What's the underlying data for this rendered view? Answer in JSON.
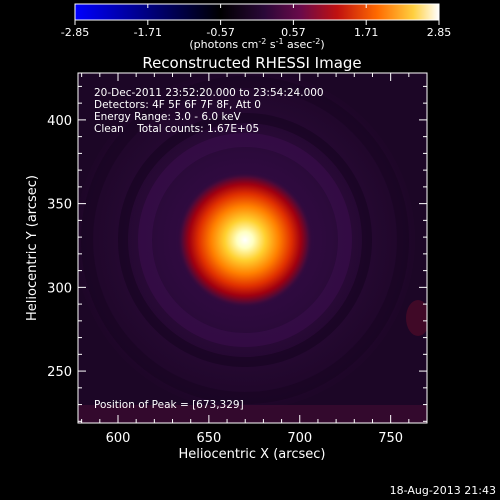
{
  "colorbar": {
    "ticks": [
      "-2.85",
      "-1.71",
      "-0.57",
      "0.57",
      "1.71",
      "2.85"
    ],
    "unit_text": "(photons cm",
    "unit_sup1": "-2",
    "unit_mid": " s",
    "unit_sup2": "-1",
    "unit_end": " asec",
    "unit_sup3": "-2",
    "unit_close": ")"
  },
  "title": "Reconstructed RHESSI Image",
  "info": {
    "line1": "20-Dec-2011 23:52:20.000 to 23:54:24.000",
    "line2": "Detectors: 4F 5F 6F 7F 8F, Att 0",
    "line3": "Energy Range: 3.0 - 6.0 keV",
    "line4": "Clean    Total counts: 1.67E+05",
    "peak": "Position of Peak = [673,329]"
  },
  "footer_timestamp": "18-Aug-2013 21:43",
  "chart_data": {
    "type": "heatmap",
    "title": "Reconstructed RHESSI Image",
    "xlabel": "Heliocentric X (arcsec)",
    "ylabel": "Heliocentric Y (arcsec)",
    "xlim": [
      578,
      770
    ],
    "ylim": [
      219,
      428
    ],
    "x_ticks": [
      600,
      650,
      700,
      750
    ],
    "y_ticks": [
      250,
      300,
      350,
      400
    ],
    "colorbar_range": [
      -2.85,
      2.85
    ],
    "colorbar_ticks": [
      -2.85,
      -1.71,
      -0.57,
      0.57,
      1.71,
      2.85
    ],
    "colorbar_unit": "(photons cm^-2 s^-1 asec^-2)",
    "peak": {
      "x": 673,
      "y": 329
    },
    "source_radius_arcsec": 17,
    "colormap": [
      "#0000ff",
      "#000000",
      "#3c0a5a",
      "#c00000",
      "#ff6000",
      "#ffc000",
      "#ffffff"
    ]
  }
}
